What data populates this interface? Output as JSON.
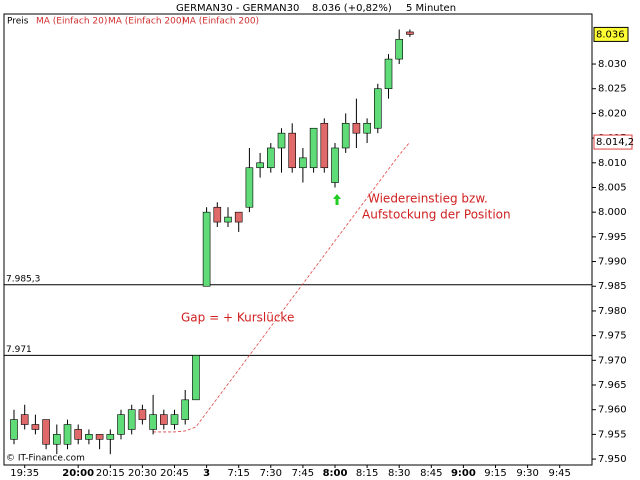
{
  "chart_data": {
    "type": "candlestick",
    "title": "GERMAN30 - GERMAN30",
    "price_info": "8.036 (+0,82%)",
    "interval": "5 Minuten",
    "legend": [
      "Preis",
      "MA (Einfach 20)",
      "MA (Einfach 200)",
      "MA (Einfach 200)"
    ],
    "annotations": [
      "Wiedereinstieg bzw.",
      "Aufstockung der Position",
      "Gap = + Kurslücke"
    ],
    "copyright": "© IT-Finance.com",
    "up_color": "#5fdc78",
    "down_color": "#e06a6a",
    "categories": [
      null,
      "19:35",
      null,
      null,
      null,
      null,
      "20:00",
      null,
      null,
      "20:15",
      null,
      null,
      "20:30",
      null,
      null,
      "20:45",
      null,
      null,
      "3",
      null,
      null,
      "7:15",
      null,
      null,
      "7:30",
      null,
      null,
      "7:45",
      null,
      null,
      "8:00",
      null,
      null,
      "8:15",
      null,
      null,
      "8:30",
      null,
      null,
      "8:45",
      null,
      null,
      "9:00",
      null,
      null,
      "9:15",
      null,
      null,
      "9:30",
      null,
      null,
      "9:45",
      null,
      null,
      null
    ],
    "open": [
      7.954,
      7.959,
      7.957,
      7.958,
      7.953,
      7.953,
      7.956,
      7.954,
      7.955,
      7.954,
      7.955,
      7.956,
      7.96,
      7.956,
      7.959,
      7.957,
      7.958,
      7.962,
      7.985,
      8.001,
      7.998,
      8.0,
      8.001,
      8.009,
      8.009,
      8.013,
      8.016,
      8.009,
      8.009,
      8.018,
      8.006,
      8.013,
      8.018,
      8.016,
      8.017,
      8.025,
      8.031,
      8.0365,
      null,
      null,
      null,
      null,
      null,
      null,
      null,
      null,
      null,
      null,
      null,
      null,
      null,
      null,
      null,
      null,
      null
    ],
    "high": [
      7.96,
      7.961,
      7.959,
      7.958,
      7.957,
      7.958,
      7.957,
      7.956,
      7.955,
      7.956,
      7.96,
      7.961,
      7.961,
      7.963,
      7.96,
      7.96,
      7.964,
      7.971,
      8.001,
      8.002,
      8.001,
      8.0,
      8.013,
      8.012,
      8.014,
      8.017,
      8.018,
      8.013,
      8.017,
      8.019,
      8.014,
      8.02,
      8.023,
      8.019,
      8.026,
      8.032,
      8.037,
      8.037,
      null,
      null,
      null,
      null,
      null,
      null,
      null,
      null,
      null,
      null,
      null,
      null,
      null,
      null,
      null,
      null,
      null
    ],
    "low": [
      7.953,
      7.956,
      7.955,
      7.952,
      7.951,
      7.952,
      7.953,
      7.953,
      7.952,
      7.951,
      7.954,
      7.955,
      7.957,
      7.955,
      7.956,
      7.956,
      7.957,
      7.962,
      7.985,
      7.997,
      7.997,
      7.996,
      8.0,
      8.007,
      8.008,
      8.008,
      8.008,
      8.006,
      8.008,
      8.008,
      8.005,
      8.012,
      8.013,
      8.014,
      8.016,
      8.023,
      8.03,
      8.0355,
      null,
      null,
      null,
      null,
      null,
      null,
      null,
      null,
      null,
      null,
      null,
      null,
      null,
      null,
      null,
      null,
      null
    ],
    "close": [
      7.958,
      7.957,
      7.956,
      7.953,
      7.955,
      7.957,
      7.954,
      7.955,
      7.954,
      7.955,
      7.959,
      7.96,
      7.958,
      7.959,
      7.957,
      7.959,
      7.962,
      7.971,
      8.0,
      7.998,
      7.999,
      7.998,
      8.009,
      8.01,
      8.013,
      8.016,
      8.009,
      8.011,
      8.017,
      8.009,
      8.013,
      8.018,
      8.016,
      8.018,
      8.025,
      8.031,
      8.035,
      8.036,
      null,
      null,
      null,
      null,
      null,
      null,
      null,
      null,
      null,
      null,
      null,
      null,
      null,
      null,
      null,
      null,
      null
    ],
    "ma": {
      "color": "#e04040",
      "value_label": "8.014,2",
      "values": [
        null,
        null,
        null,
        null,
        null,
        null,
        null,
        null,
        null,
        null,
        null,
        null,
        null,
        7.9555,
        7.9555,
        7.9555,
        7.9557,
        7.9565,
        7.9594,
        7.9623,
        7.9652,
        7.9681,
        7.971,
        7.9739,
        7.9768,
        7.9797,
        7.9826,
        7.9855,
        7.9884,
        7.9913,
        7.9942,
        7.9971,
        8.0,
        8.0029,
        8.0058,
        8.0087,
        8.0116,
        8.0142,
        null,
        null,
        null,
        null,
        null,
        null,
        null,
        null,
        null,
        null,
        null,
        null,
        null,
        null,
        null,
        null,
        null
      ]
    },
    "levels": [
      {
        "value": 7.9853,
        "label": "7.985,3"
      },
      7.971
    ],
    "ylim": [
      7.9488,
      8.0375
    ],
    "yticks": [
      {
        "value": 7.95,
        "label": "7.950"
      },
      7.955,
      {
        "value": 7.96,
        "label": "7.960"
      },
      7.965,
      {
        "value": 7.97,
        "label": "7.970"
      },
      7.975,
      {
        "value": 7.98,
        "label": "7.980"
      },
      7.985,
      {
        "value": 7.99,
        "label": "7.990"
      },
      7.995,
      {
        "value": 8.0,
        "label": "8.000"
      },
      8.005,
      {
        "value": 8.01,
        "label": "8.010"
      },
      8.015,
      {
        "value": 8.02,
        "label": "8.020"
      },
      8.025,
      {
        "value": 8.03,
        "label": "8.030"
      }
    ]
  }
}
